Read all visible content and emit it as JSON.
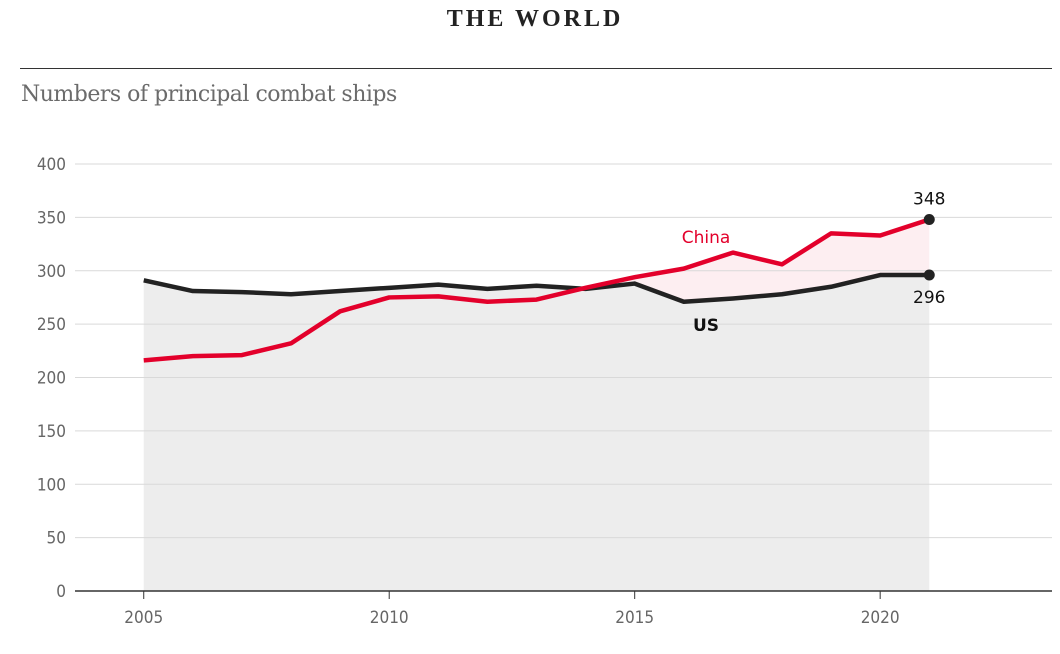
{
  "header": {
    "section": "THE WORLD"
  },
  "chart_data": {
    "type": "line",
    "title": "Numbers of principal combat ships",
    "xlabel": "",
    "ylabel": "",
    "xlim": [
      2003.6,
      2023.5
    ],
    "ylim": [
      0,
      400
    ],
    "x_ticks": [
      2005,
      2010,
      2015,
      2020
    ],
    "y_ticks": [
      0,
      50,
      100,
      150,
      200,
      250,
      300,
      350,
      400
    ],
    "grid": true,
    "x": [
      2005,
      2006,
      2007,
      2008,
      2009,
      2010,
      2011,
      2012,
      2013,
      2014,
      2015,
      2016,
      2017,
      2018,
      2019,
      2020,
      2021
    ],
    "series": [
      {
        "name": "China",
        "color": "#e3002b",
        "values": [
          216,
          220,
          221,
          232,
          262,
          275,
          276,
          271,
          273,
          284,
          294,
          302,
          317,
          306,
          335,
          333,
          348
        ]
      },
      {
        "name": "US",
        "color": "#222222",
        "values": [
          291,
          281,
          280,
          278,
          281,
          284,
          287,
          283,
          286,
          283,
          288,
          271,
          274,
          278,
          285,
          296,
          296
        ]
      }
    ],
    "end_labels": {
      "China": "348",
      "US": "296"
    },
    "fill_colors": {
      "us_area": "#ededed",
      "gap": "#fdeef1"
    }
  }
}
